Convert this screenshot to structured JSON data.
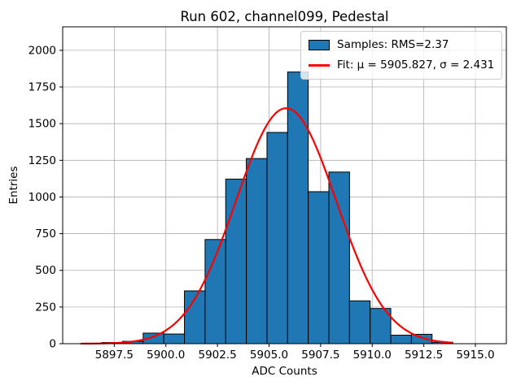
{
  "chart_data": {
    "type": "bar",
    "subtype": "histogram-with-gaussian-fit",
    "title": "Run 602, channel099, Pedestal",
    "xlabel": "ADC Counts",
    "ylabel": "Entries",
    "xlim": [
      5895.0,
      5916.5
    ],
    "ylim": [
      0,
      2160
    ],
    "grid": true,
    "grid_color": "#b0b0b0",
    "background": "#ffffff",
    "x_ticks": [
      5897.5,
      5900.0,
      5902.5,
      5905.0,
      5907.5,
      5910.0,
      5912.5,
      5915.0
    ],
    "x_tick_labels": [
      "5897.5",
      "5900.0",
      "5902.5",
      "5905.0",
      "5907.5",
      "5910.0",
      "5912.5",
      "5915.0"
    ],
    "y_ticks": [
      0,
      250,
      500,
      750,
      1000,
      1250,
      1500,
      1750,
      2000
    ],
    "y_tick_labels": [
      "0",
      "250",
      "500",
      "750",
      "1000",
      "1250",
      "1500",
      "1750",
      "2000"
    ],
    "bar_color": "#1f77b4",
    "bar_edge_color": "#000000",
    "bin_edges": [
      5896.9,
      5897.9,
      5898.9,
      5899.9,
      5900.9,
      5901.9,
      5902.9,
      5903.9,
      5904.9,
      5905.9,
      5906.9,
      5907.9,
      5908.9,
      5909.9,
      5910.9,
      5911.9,
      5912.9,
      5913.9
    ],
    "counts": [
      8,
      16,
      72,
      66,
      360,
      710,
      1122,
      1262,
      1440,
      1852,
      1036,
      1170,
      292,
      240,
      58,
      64,
      10
    ],
    "fit": {
      "type": "gaussian",
      "mu": 5905.827,
      "sigma": 2.431,
      "amplitude": 1605,
      "color": "#ff0000",
      "x_range": [
        5895.9,
        5913.85
      ]
    },
    "legend": {
      "position": "upper right",
      "entries": [
        {
          "swatch": "patch",
          "color": "#1f77b4",
          "label": "Samples: RMS=2.37"
        },
        {
          "swatch": "line",
          "color": "#ff0000",
          "label": "Fit: μ = 5905.827, σ = 2.431"
        }
      ]
    }
  }
}
